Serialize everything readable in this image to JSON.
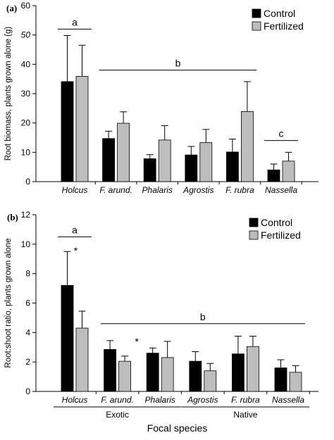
{
  "chart_data": [
    {
      "type": "bar",
      "panel_label": "(a)",
      "ylabel": "Root biomass, plants grown alone (g)",
      "ylim": [
        0,
        60
      ],
      "yticks": [
        "0",
        "10",
        "20",
        "30",
        "40",
        "50",
        "60"
      ],
      "categories": [
        "Holcus",
        "F. arund.",
        "Phalaris",
        "Agrostis",
        "F. rubra",
        "Nassella"
      ],
      "series": [
        {
          "name": "Control",
          "color": "#000000",
          "values": [
            34.1,
            14.7,
            7.8,
            9.1,
            10.1,
            4.0
          ],
          "errors": [
            15.7,
            2.5,
            1.4,
            2.9,
            4.4,
            2.0
          ]
        },
        {
          "name": "Fertilized",
          "color": "#bdbdbd",
          "values": [
            35.9,
            19.9,
            14.2,
            13.3,
            23.9,
            7.0
          ],
          "errors": [
            10.6,
            3.9,
            4.9,
            4.5,
            10.2,
            3.0
          ]
        }
      ],
      "significance": [
        {
          "letter": "a",
          "from": 0,
          "to": 0,
          "y": 52
        },
        {
          "letter": "b",
          "from": 1,
          "to": 4,
          "y": 38
        },
        {
          "letter": "c",
          "from": 5,
          "to": 5,
          "y": 14
        }
      ],
      "legend": "top-right"
    },
    {
      "type": "bar",
      "panel_label": "(b)",
      "ylabel": "Root:shoot ratio, plants grown alone",
      "ylim": [
        0,
        12
      ],
      "yticks": [
        "0",
        "2",
        "4",
        "6",
        "8",
        "10",
        "12"
      ],
      "categories": [
        "Holcus",
        "F. arund.",
        "Phalaris",
        "Agrostis",
        "F. rubra",
        "Nassella"
      ],
      "series": [
        {
          "name": "Control",
          "color": "#000000",
          "values": [
            7.2,
            2.85,
            2.6,
            2.05,
            2.55,
            1.6
          ],
          "errors": [
            2.3,
            0.6,
            0.35,
            0.65,
            1.2,
            0.55
          ]
        },
        {
          "name": "Fertilized",
          "color": "#bdbdbd",
          "values": [
            4.3,
            2.05,
            2.3,
            1.4,
            3.05,
            1.3
          ],
          "errors": [
            1.15,
            0.35,
            1.1,
            0.5,
            0.7,
            0.45
          ]
        }
      ],
      "significance": [
        {
          "letter": "a",
          "from": 0,
          "to": 0,
          "y": 10.5
        },
        {
          "letter": "b",
          "from": 1,
          "to": 5,
          "y": 4.6
        }
      ],
      "asterisks": [
        {
          "category": 0,
          "y": 9.6
        },
        {
          "category": 1,
          "y": 3.45
        }
      ],
      "groups": [
        {
          "name": "Exotic",
          "from": 0,
          "to": 2
        },
        {
          "name": "Native",
          "from": 3,
          "to": 5
        }
      ],
      "xlabel": "Focal species",
      "legend": "top-right"
    }
  ]
}
